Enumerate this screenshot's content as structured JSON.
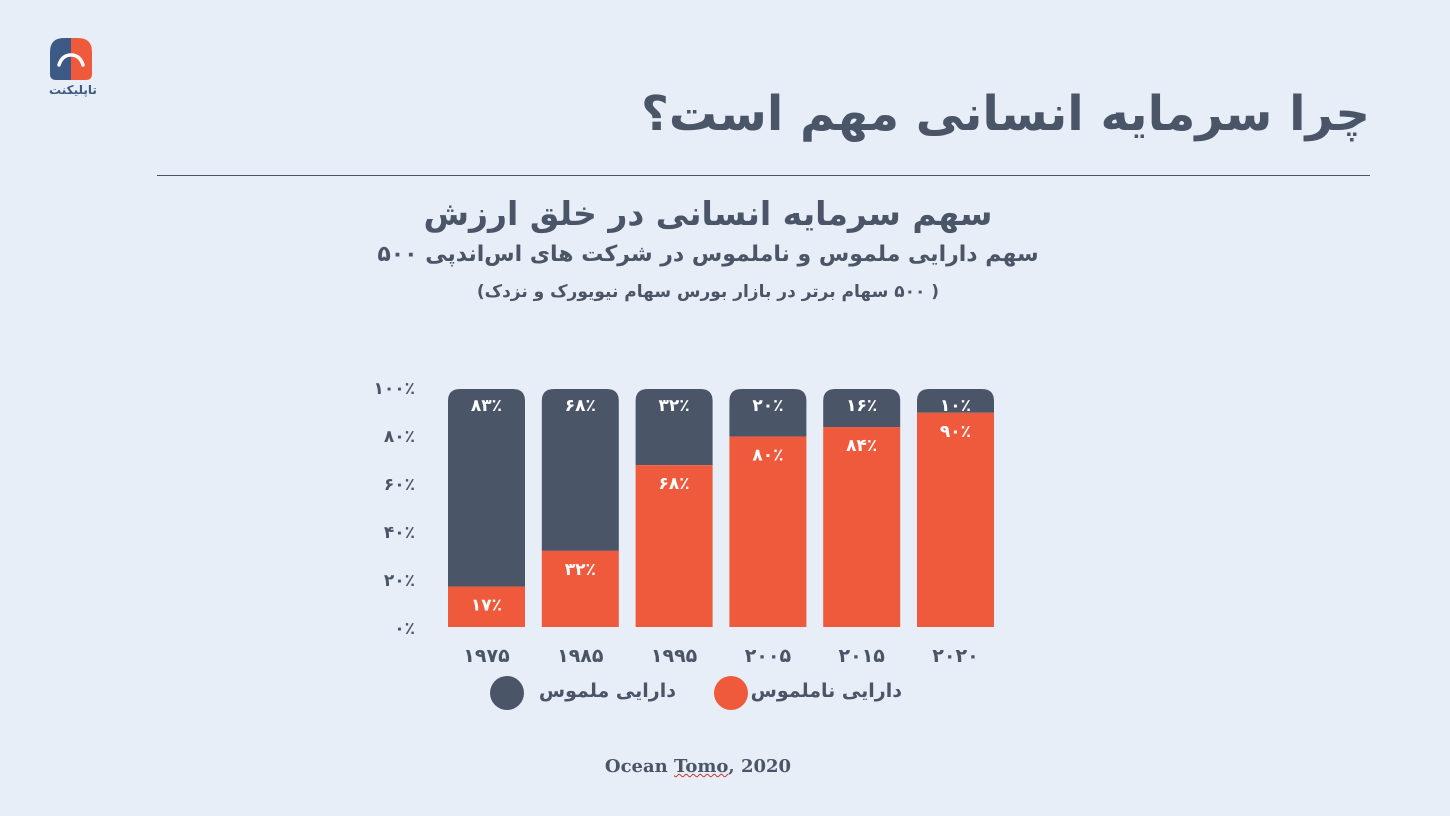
{
  "brand": {
    "name": "تاپلیکنت",
    "colors": {
      "blue": "#3d5a86",
      "orange": "#f05a3c"
    }
  },
  "slide": {
    "title": "چرا سرمایه انسانی مهم است؟"
  },
  "source": {
    "prefix": "Ocean ",
    "underlined": "Tomo",
    "suffix": ", 2020"
  },
  "colors": {
    "tangible": "#4a5568",
    "intangible": "#f05a3c",
    "background": "#e7eef7",
    "label_on_bar": "#ffffff"
  },
  "chart_data": {
    "type": "bar",
    "stacked": true,
    "title": "سهم سرمایه انسانی در خلق ارزش",
    "subtitle": "سهم دارایی ملموس و ناملموس در شرکت های اس‌اندپی ۵۰۰",
    "note": "( ۵۰۰ سهام برتر در بازار بورس سهام نیویورک و نزدک)",
    "categories": [
      "۱۹۷۵",
      "۱۹۸۵",
      "۱۹۹۵",
      "۲۰۰۵",
      "۲۰۱۵",
      "۲۰۲۰"
    ],
    "category_values": [
      1975,
      1985,
      1995,
      2005,
      2015,
      2020
    ],
    "series": [
      {
        "name": "دارایی ناملموس",
        "color": "#f05a3c",
        "values": [
          17,
          32,
          68,
          80,
          84,
          90
        ],
        "labels": [
          "۱۷٪",
          "۳۲٪",
          "۶۸٪",
          "۸۰٪",
          "۸۴٪",
          "۹۰٪"
        ]
      },
      {
        "name": "دارایی ملموس",
        "color": "#4a5568",
        "values": [
          83,
          68,
          32,
          20,
          16,
          10
        ],
        "labels": [
          "۸۳٪",
          "۶۸٪",
          "۳۲٪",
          "۲۰٪",
          "۱۶٪",
          "۱۰٪"
        ]
      }
    ],
    "y_ticks": [
      0,
      20,
      40,
      60,
      80,
      100
    ],
    "y_tick_labels": [
      "۰٪",
      "۲۰٪",
      "۴۰٪",
      "۶۰٪",
      "۸۰٪",
      "۱۰۰٪"
    ],
    "ylim": [
      0,
      100
    ],
    "grid": false,
    "legend_position": "bottom"
  }
}
